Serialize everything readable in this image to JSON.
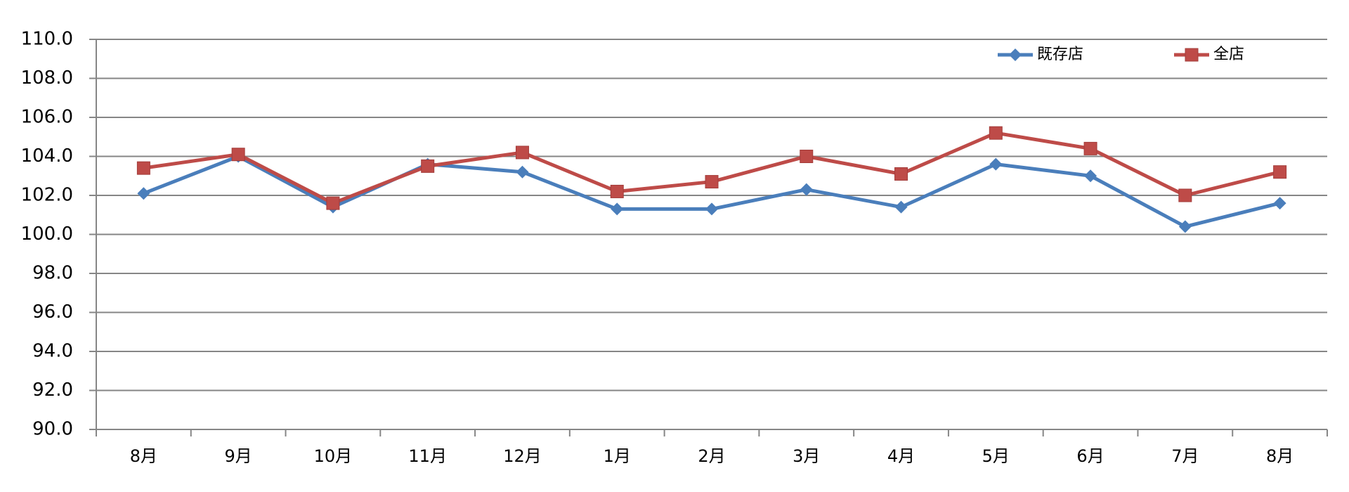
{
  "chart_data": {
    "type": "line",
    "categories": [
      "8月",
      "9月",
      "10月",
      "11月",
      "12月",
      "1月",
      "2月",
      "3月",
      "4月",
      "5月",
      "6月",
      "7月",
      "8月"
    ],
    "series": [
      {
        "name": "既存店",
        "color": "#4a7ebb",
        "marker": "diamond",
        "values": [
          102.1,
          104.0,
          101.4,
          103.6,
          103.2,
          101.3,
          101.3,
          102.3,
          101.4,
          103.6,
          103.0,
          100.4,
          101.6
        ]
      },
      {
        "name": "全店",
        "color": "#be4b48",
        "marker": "square",
        "values": [
          103.4,
          104.1,
          101.6,
          103.5,
          104.2,
          102.2,
          102.7,
          104.0,
          103.1,
          105.2,
          104.4,
          102.0,
          103.2
        ]
      }
    ],
    "ylim": [
      90,
      110
    ],
    "yticks": [
      {
        "value": 90,
        "label": "90.0"
      },
      {
        "value": 92,
        "label": "92.0"
      },
      {
        "value": 94,
        "label": "94.0"
      },
      {
        "value": 96,
        "label": "96.0"
      },
      {
        "value": 98,
        "label": "98.0"
      },
      {
        "value": 100,
        "label": "100.0"
      },
      {
        "value": 102,
        "label": "102.0"
      },
      {
        "value": 104,
        "label": "104.0"
      },
      {
        "value": 106,
        "label": "106.0"
      },
      {
        "value": 108,
        "label": "108.0"
      },
      {
        "value": 110,
        "label": "110.0"
      }
    ],
    "grid": true,
    "legend": "upper right"
  }
}
